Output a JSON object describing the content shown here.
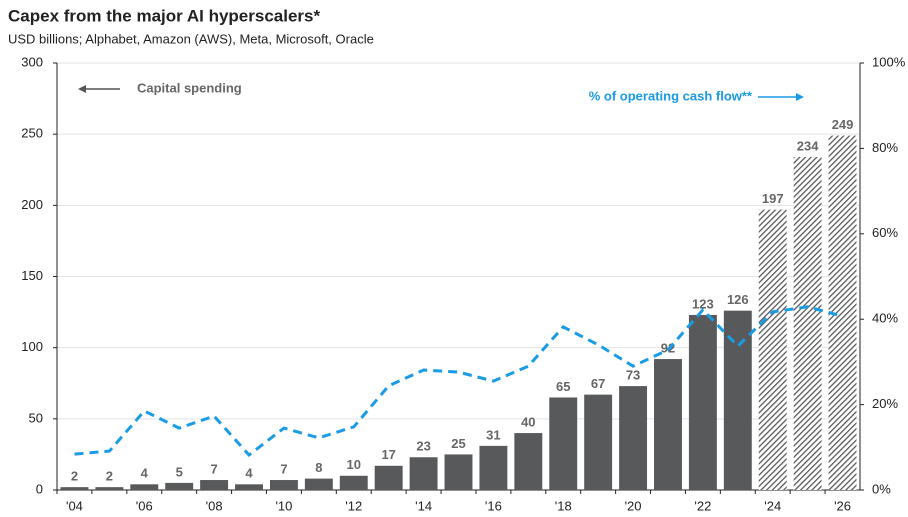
{
  "chart_data": {
    "type": "bar-line",
    "title": "Capex from the major AI hyperscalers*",
    "subtitle": "USD billions; Alphabet, Amazon (AWS), Meta, Microsoft, Oracle",
    "categories": [
      "'04",
      null,
      "'06",
      null,
      "'08",
      null,
      "'10",
      null,
      "'12",
      null,
      "'14",
      null,
      "'16",
      null,
      "'18",
      null,
      "'20",
      null,
      "'22",
      null,
      "'24",
      null,
      "'26"
    ],
    "series": [
      {
        "name": "Capital spending",
        "type": "bar",
        "color": "#58595b",
        "values": [
          2,
          2,
          4,
          5,
          7,
          4,
          7,
          8,
          10,
          17,
          23,
          25,
          31,
          40,
          65,
          67,
          73,
          92,
          123,
          126,
          197,
          234,
          249
        ],
        "hatched": [
          false,
          false,
          false,
          false,
          false,
          false,
          false,
          false,
          false,
          false,
          false,
          false,
          false,
          false,
          false,
          false,
          false,
          false,
          false,
          false,
          true,
          true,
          true
        ]
      },
      {
        "name": "% of operating cash flow**",
        "type": "line",
        "axis": "y2",
        "color": "#1a9be6",
        "values": [
          8.4,
          9.1,
          18.5,
          14.5,
          17.3,
          8.2,
          14.5,
          12.2,
          14.8,
          24.4,
          28.1,
          27.6,
          25.5,
          29,
          38.2,
          34,
          29,
          32.8,
          42.2,
          33.7,
          41.7,
          42.9,
          40.7
        ]
      }
    ],
    "ylim": [
      0,
      300
    ],
    "yticks": [
      0,
      50,
      100,
      150,
      200,
      250,
      300
    ],
    "y2lim": [
      0,
      100
    ],
    "y2ticks": [
      {
        "value": 0,
        "label": "0%"
      },
      {
        "value": 20,
        "label": "20%"
      },
      {
        "value": 40,
        "label": "40%"
      },
      {
        "value": 60,
        "label": "60%"
      },
      {
        "value": 80,
        "label": "80%"
      },
      {
        "value": 100,
        "label": "100%"
      }
    ],
    "grid": true
  }
}
